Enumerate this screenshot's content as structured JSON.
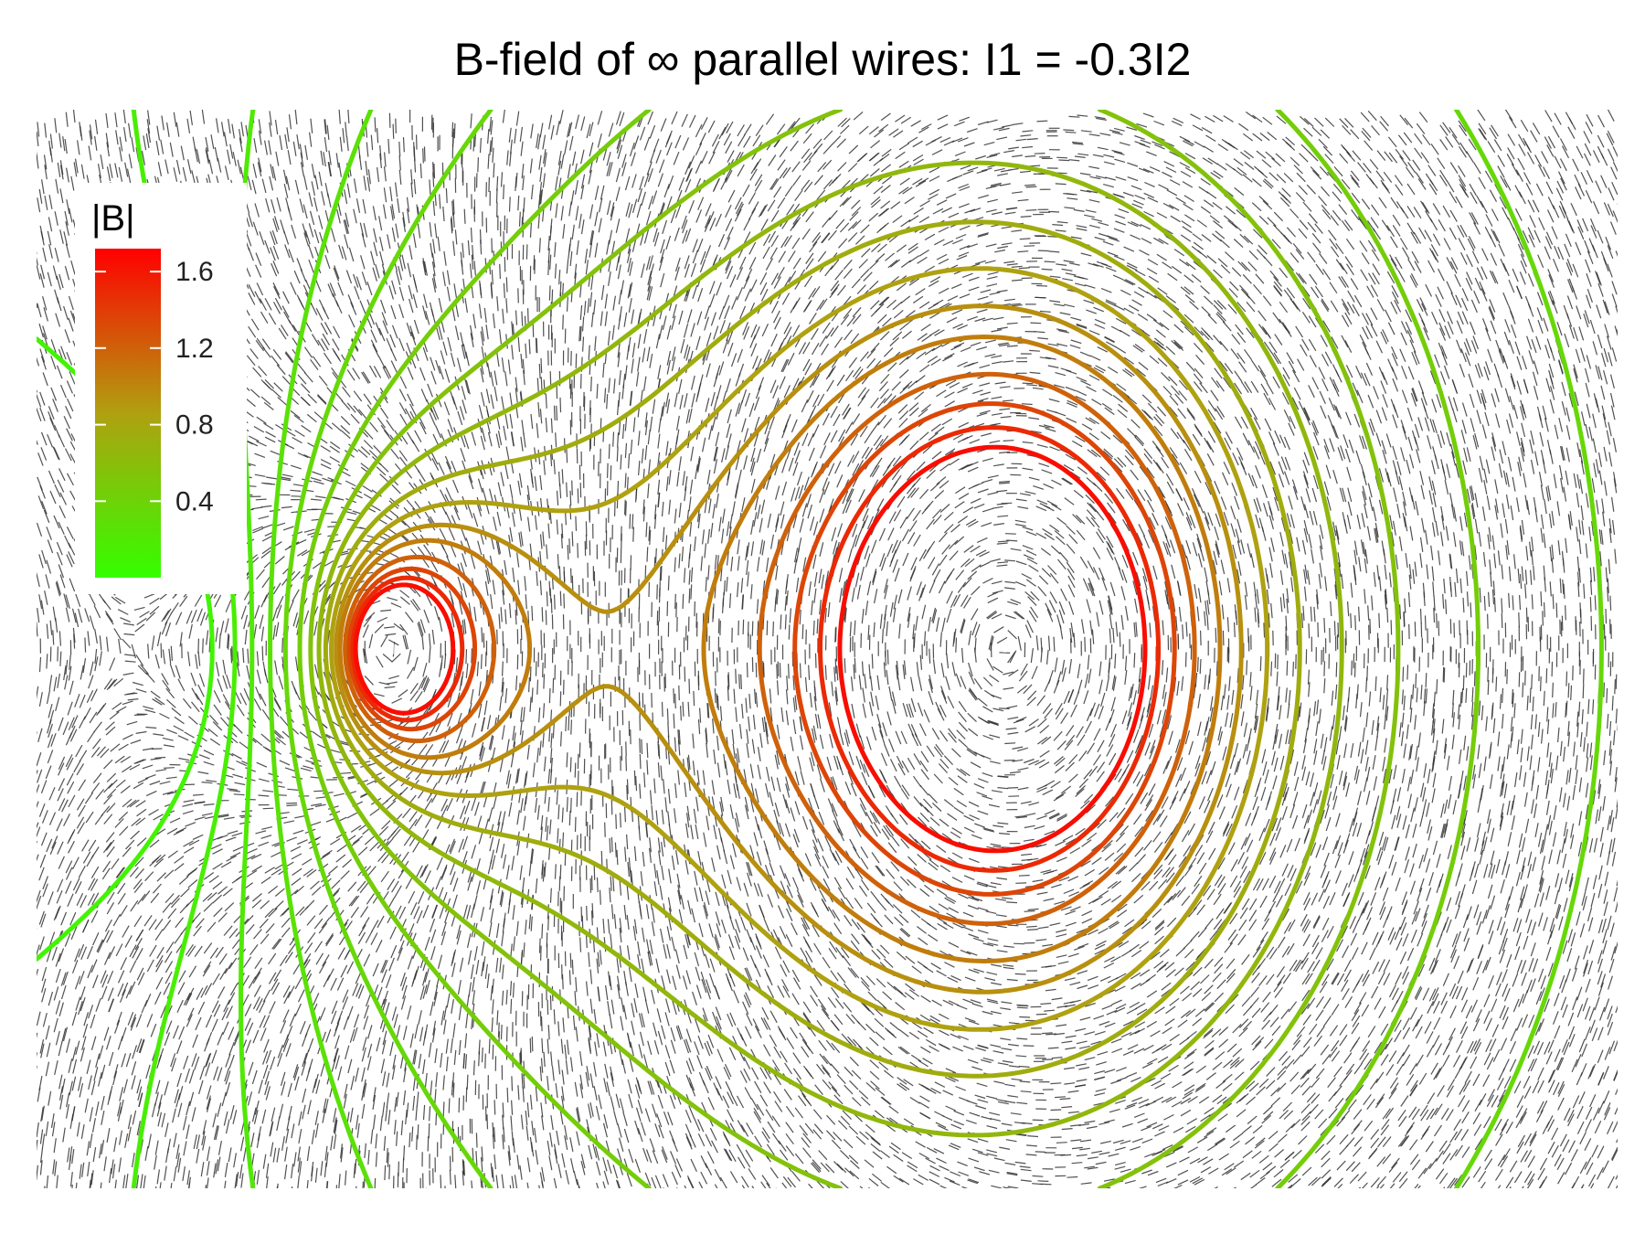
{
  "chart_data": {
    "type": "contour",
    "title": "B-field of ∞ parallel wires: I1 = -0.3I2",
    "wires": [
      {
        "label": "I1",
        "relative_current": -0.3,
        "x": -1.0,
        "y": 0.0
      },
      {
        "label": "I2",
        "relative_current": 1.0,
        "x": 1.5,
        "y": 0.0
      }
    ],
    "x_range": [
      -2.45,
      4.0
    ],
    "y_range": [
      -1.6,
      1.6
    ],
    "contour_variable": "|B|",
    "contour_levels": [
      0.1,
      0.15,
      0.2,
      0.27,
      0.35,
      0.45,
      0.55,
      0.65,
      0.75,
      0.85,
      0.95,
      1.05,
      1.2,
      1.35,
      1.5,
      1.65
    ],
    "segments_overlay": "field direction line segments",
    "colorbar": {
      "title": "|B|",
      "min": 0.0,
      "max": 1.72,
      "ticks": [
        "0.4",
        "0.8",
        "1.2",
        "1.6"
      ],
      "tick_values": [
        0.4,
        0.8,
        1.2,
        1.6
      ],
      "color_low": "#33ff00",
      "color_mid": "#b0a010",
      "color_high": "#ff0000"
    },
    "legend_position": "top-left",
    "grid": false
  }
}
